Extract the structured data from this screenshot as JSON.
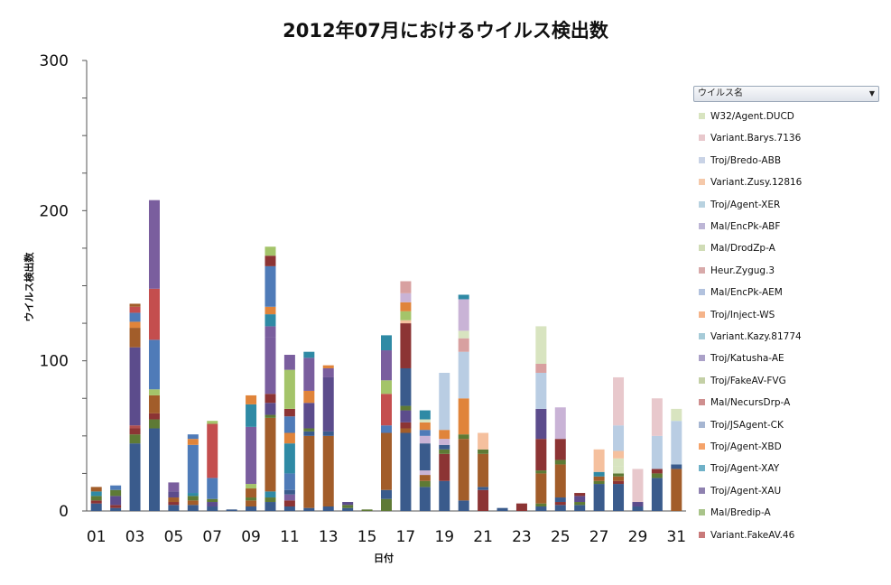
{
  "chart_data": {
    "type": "bar",
    "stacked": true,
    "title": "2012年07月におけるウイルス検出数",
    "xlabel": "日付",
    "ylabel": "ウイルス検出数",
    "ylim": [
      0,
      300
    ],
    "yticks": [
      0,
      100,
      200,
      300
    ],
    "x_tick_labels": [
      "01",
      "03",
      "05",
      "07",
      "09",
      "11",
      "13",
      "15",
      "17",
      "19",
      "21",
      "23",
      "25",
      "27",
      "29",
      "31"
    ],
    "legend_title": "ウイルス名",
    "legend_entries": [
      "W32/Agent.DUCD",
      "Variant.Barys.7136",
      "Troj/Bredo-ABB",
      "Variant.Zusy.12816",
      "Troj/Agent-XER",
      "Mal/EncPk-ABF",
      "Mal/DrodZp-A",
      "Heur.Zygug.3",
      "Mal/EncPk-AEM",
      "Troj/Inject-WS",
      "Variant.Kazy.81774",
      "Troj/Katusha-AE",
      "Troj/FakeAV-FVG",
      "Mal/NecursDrp-A",
      "Troj/JSAgent-CK",
      "Troj/Agent-XBD",
      "Troj/Agent-XAY",
      "Troj/Agent-XAU",
      "Mal/Bredip-A",
      "Variant.FakeAV.46"
    ],
    "categories": [
      "01",
      "02",
      "03",
      "04",
      "05",
      "06",
      "07",
      "08",
      "09",
      "10",
      "11",
      "12",
      "13",
      "14",
      "15",
      "16",
      "17",
      "18",
      "19",
      "20",
      "21",
      "22",
      "23",
      "24",
      "25",
      "26",
      "27",
      "28",
      "29",
      "30",
      "31"
    ],
    "segment_colors": [
      "#3a5b8c",
      "#a25d2a",
      "#5e7a35",
      "#7a3c6e",
      "#2f8aa5",
      "#8c3434",
      "#5c4c8c",
      "#b04f4f",
      "#4f7bb8",
      "#e0843a",
      "#49a3b8",
      "#7a5e9e",
      "#a4c46a",
      "#c44e4e",
      "#c9b3d6",
      "#d8a0a0",
      "#b9cde3",
      "#f5c09e",
      "#e8c8cc",
      "#d8e4c0"
    ],
    "stacks": [
      [
        {
          "c": 0,
          "v": 5
        },
        {
          "c": 5,
          "v": 2
        },
        {
          "c": 2,
          "v": 3
        },
        {
          "c": 4,
          "v": 3
        },
        {
          "c": 1,
          "v": 3
        }
      ],
      [
        {
          "c": 0,
          "v": 2
        },
        {
          "c": 5,
          "v": 2
        },
        {
          "c": 6,
          "v": 6
        },
        {
          "c": 2,
          "v": 4
        },
        {
          "c": 8,
          "v": 3
        }
      ],
      [
        {
          "c": 0,
          "v": 45
        },
        {
          "c": 2,
          "v": 6
        },
        {
          "c": 5,
          "v": 4
        },
        {
          "c": 7,
          "v": 2
        },
        {
          "c": 6,
          "v": 52
        },
        {
          "c": 1,
          "v": 13
        },
        {
          "c": 9,
          "v": 4
        },
        {
          "c": 8,
          "v": 6
        },
        {
          "c": 13,
          "v": 4
        },
        {
          "c": 1,
          "v": 2
        }
      ],
      [
        {
          "c": 0,
          "v": 55
        },
        {
          "c": 2,
          "v": 6
        },
        {
          "c": 5,
          "v": 4
        },
        {
          "c": 1,
          "v": 12
        },
        {
          "c": 12,
          "v": 4
        },
        {
          "c": 8,
          "v": 33
        },
        {
          "c": 13,
          "v": 34
        },
        {
          "c": 11,
          "v": 59
        }
      ],
      [
        {
          "c": 0,
          "v": 4
        },
        {
          "c": 5,
          "v": 2
        },
        {
          "c": 1,
          "v": 3
        },
        {
          "c": 6,
          "v": 4
        },
        {
          "c": 11,
          "v": 6
        }
      ],
      [
        {
          "c": 0,
          "v": 4
        },
        {
          "c": 1,
          "v": 3
        },
        {
          "c": 2,
          "v": 3
        },
        {
          "c": 4,
          "v": 2
        },
        {
          "c": 8,
          "v": 32
        },
        {
          "c": 9,
          "v": 4
        },
        {
          "c": 8,
          "v": 3
        }
      ],
      [
        {
          "c": 0,
          "v": 3
        },
        {
          "c": 6,
          "v": 3
        },
        {
          "c": 2,
          "v": 2
        },
        {
          "c": 8,
          "v": 14
        },
        {
          "c": 13,
          "v": 36
        },
        {
          "c": 12,
          "v": 2
        }
      ],
      [
        {
          "c": 0,
          "v": 1
        }
      ],
      [
        {
          "c": 0,
          "v": 3
        },
        {
          "c": 1,
          "v": 4
        },
        {
          "c": 2,
          "v": 2
        },
        {
          "c": 1,
          "v": 6
        },
        {
          "c": 12,
          "v": 3
        },
        {
          "c": 11,
          "v": 38
        },
        {
          "c": 4,
          "v": 15
        },
        {
          "c": 9,
          "v": 6
        }
      ],
      [
        {
          "c": 0,
          "v": 6
        },
        {
          "c": 2,
          "v": 3
        },
        {
          "c": 4,
          "v": 4
        },
        {
          "c": 1,
          "v": 49
        },
        {
          "c": 2,
          "v": 2
        },
        {
          "c": 6,
          "v": 8
        },
        {
          "c": 5,
          "v": 6
        },
        {
          "c": 11,
          "v": 38
        },
        {
          "c": 11,
          "v": 7
        },
        {
          "c": 4,
          "v": 8
        },
        {
          "c": 9,
          "v": 5
        },
        {
          "c": 8,
          "v": 27
        },
        {
          "c": 5,
          "v": 7
        },
        {
          "c": 12,
          "v": 6
        }
      ],
      [
        {
          "c": 0,
          "v": 3
        },
        {
          "c": 5,
          "v": 4
        },
        {
          "c": 11,
          "v": 4
        },
        {
          "c": 0,
          "v": 3
        },
        {
          "c": 8,
          "v": 11
        },
        {
          "c": 4,
          "v": 20
        },
        {
          "c": 9,
          "v": 7
        },
        {
          "c": 8,
          "v": 11
        },
        {
          "c": 5,
          "v": 5
        },
        {
          "c": 12,
          "v": 26
        },
        {
          "c": 11,
          "v": 10
        }
      ],
      [
        {
          "c": 0,
          "v": 2
        },
        {
          "c": 1,
          "v": 48
        },
        {
          "c": 0,
          "v": 3
        },
        {
          "c": 2,
          "v": 2
        },
        {
          "c": 6,
          "v": 17
        },
        {
          "c": 9,
          "v": 8
        },
        {
          "c": 11,
          "v": 22
        },
        {
          "c": 4,
          "v": 4
        }
      ],
      [
        {
          "c": 0,
          "v": 3
        },
        {
          "c": 1,
          "v": 3
        },
        {
          "c": 1,
          "v": 44
        },
        {
          "c": 0,
          "v": 3
        },
        {
          "c": 6,
          "v": 36
        },
        {
          "c": 11,
          "v": 6
        },
        {
          "c": 9,
          "v": 2
        }
      ],
      [
        {
          "c": 0,
          "v": 2
        },
        {
          "c": 2,
          "v": 2
        },
        {
          "c": 6,
          "v": 2
        }
      ],
      [
        {
          "c": 2,
          "v": 1
        }
      ],
      [
        {
          "c": 2,
          "v": 8
        },
        {
          "c": 0,
          "v": 6
        },
        {
          "c": 1,
          "v": 38
        },
        {
          "c": 8,
          "v": 5
        },
        {
          "c": 13,
          "v": 21
        },
        {
          "c": 12,
          "v": 9
        },
        {
          "c": 11,
          "v": 20
        },
        {
          "c": 4,
          "v": 10
        }
      ],
      [
        {
          "c": 0,
          "v": 52
        },
        {
          "c": 1,
          "v": 3
        },
        {
          "c": 5,
          "v": 4
        },
        {
          "c": 6,
          "v": 8
        },
        {
          "c": 2,
          "v": 3
        },
        {
          "c": 0,
          "v": 25
        },
        {
          "c": 5,
          "v": 30
        },
        {
          "c": 17,
          "v": 2
        },
        {
          "c": 12,
          "v": 6
        },
        {
          "c": 9,
          "v": 6
        },
        {
          "c": 14,
          "v": 6
        },
        {
          "c": 15,
          "v": 8
        }
      ],
      [
        {
          "c": 0,
          "v": 16
        },
        {
          "c": 2,
          "v": 4
        },
        {
          "c": 1,
          "v": 4
        },
        {
          "c": 14,
          "v": 3
        },
        {
          "c": 0,
          "v": 18
        },
        {
          "c": 14,
          "v": 5
        },
        {
          "c": 8,
          "v": 4
        },
        {
          "c": 9,
          "v": 5
        },
        {
          "c": 19,
          "v": 2
        },
        {
          "c": 4,
          "v": 6
        }
      ],
      [
        {
          "c": 0,
          "v": 20
        },
        {
          "c": 5,
          "v": 18
        },
        {
          "c": 2,
          "v": 3
        },
        {
          "c": 0,
          "v": 3
        },
        {
          "c": 14,
          "v": 4
        },
        {
          "c": 9,
          "v": 6
        },
        {
          "c": 16,
          "v": 38
        }
      ],
      [
        {
          "c": 0,
          "v": 7
        },
        {
          "c": 1,
          "v": 41
        },
        {
          "c": 2,
          "v": 3
        },
        {
          "c": 9,
          "v": 24
        },
        {
          "c": 16,
          "v": 31
        },
        {
          "c": 15,
          "v": 9
        },
        {
          "c": 19,
          "v": 5
        },
        {
          "c": 14,
          "v": 21
        },
        {
          "c": 4,
          "v": 3
        }
      ],
      [
        {
          "c": 5,
          "v": 14
        },
        {
          "c": 0,
          "v": 2
        },
        {
          "c": 1,
          "v": 22
        },
        {
          "c": 2,
          "v": 3
        },
        {
          "c": 17,
          "v": 11
        }
      ],
      [
        {
          "c": 0,
          "v": 2
        }
      ],
      [
        {
          "c": 5,
          "v": 5
        }
      ],
      [
        {
          "c": 0,
          "v": 3
        },
        {
          "c": 2,
          "v": 2
        },
        {
          "c": 1,
          "v": 20
        },
        {
          "c": 2,
          "v": 2
        },
        {
          "c": 5,
          "v": 21
        },
        {
          "c": 6,
          "v": 20
        },
        {
          "c": 16,
          "v": 24
        },
        {
          "c": 15,
          "v": 6
        },
        {
          "c": 19,
          "v": 25
        }
      ],
      [
        {
          "c": 0,
          "v": 4
        },
        {
          "c": 5,
          "v": 2
        },
        {
          "c": 0,
          "v": 3
        },
        {
          "c": 1,
          "v": 22
        },
        {
          "c": 2,
          "v": 3
        },
        {
          "c": 5,
          "v": 14
        },
        {
          "c": 14,
          "v": 21
        }
      ],
      [
        {
          "c": 0,
          "v": 4
        },
        {
          "c": 2,
          "v": 2
        },
        {
          "c": 6,
          "v": 4
        },
        {
          "c": 5,
          "v": 2
        }
      ],
      [
        {
          "c": 0,
          "v": 18
        },
        {
          "c": 2,
          "v": 2
        },
        {
          "c": 1,
          "v": 3
        },
        {
          "c": 4,
          "v": 3
        },
        {
          "c": 17,
          "v": 15
        }
      ],
      [
        {
          "c": 0,
          "v": 18
        },
        {
          "c": 5,
          "v": 2
        },
        {
          "c": 1,
          "v": 3
        },
        {
          "c": 2,
          "v": 2
        },
        {
          "c": 19,
          "v": 5
        },
        {
          "c": 19,
          "v": 5
        },
        {
          "c": 17,
          "v": 5
        },
        {
          "c": 16,
          "v": 17
        },
        {
          "c": 18,
          "v": 32
        }
      ],
      [
        {
          "c": 0,
          "v": 3
        },
        {
          "c": 6,
          "v": 3
        },
        {
          "c": 18,
          "v": 22
        }
      ],
      [
        {
          "c": 0,
          "v": 22
        },
        {
          "c": 2,
          "v": 3
        },
        {
          "c": 5,
          "v": 3
        },
        {
          "c": 16,
          "v": 22
        },
        {
          "c": 18,
          "v": 25
        }
      ],
      [
        {
          "c": 1,
          "v": 28
        },
        {
          "c": 0,
          "v": 3
        },
        {
          "c": 16,
          "v": 29
        },
        {
          "c": 19,
          "v": 8
        }
      ]
    ]
  }
}
